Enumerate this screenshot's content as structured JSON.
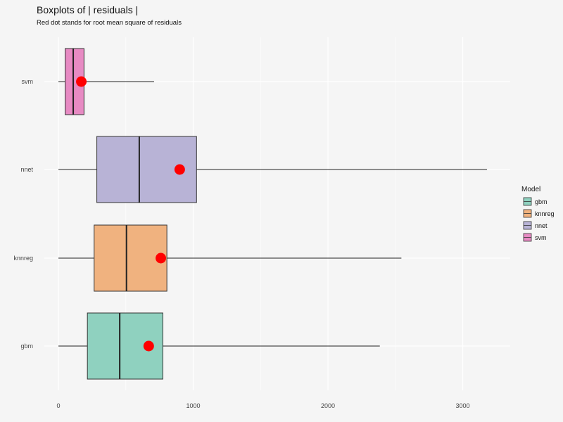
{
  "chart_data": {
    "type": "boxplot",
    "orientation": "horizontal",
    "title": "Boxplots of | residuals |",
    "subtitle": "Red dot stands for root mean square of residuals",
    "xlabel": "",
    "ylabel": "",
    "xlim": [
      -100,
      3350
    ],
    "x_ticks": [
      0,
      1000,
      2000,
      3000
    ],
    "x_tick_labels": [
      "0",
      "1000",
      "2000",
      "3000"
    ],
    "grid": true,
    "legend": {
      "title": "Model",
      "placement": "right",
      "entries": [
        "gbm",
        "knnreg",
        "nnet",
        "svm"
      ]
    },
    "categories": [
      "svm",
      "nnet",
      "knnreg",
      "gbm"
    ],
    "series": [
      {
        "name": "svm",
        "min": 0,
        "q1": 50,
        "median": 110,
        "q3": 190,
        "max": 710,
        "rmse": 170,
        "color": "#e78ac3"
      },
      {
        "name": "nnet",
        "min": 0,
        "q1": 285,
        "median": 600,
        "q3": 1025,
        "max": 3180,
        "rmse": 900,
        "color": "#b8b3d6"
      },
      {
        "name": "knnreg",
        "min": 0,
        "q1": 265,
        "median": 505,
        "q3": 805,
        "max": 2545,
        "rmse": 760,
        "color": "#f0b27f"
      },
      {
        "name": "gbm",
        "min": 0,
        "q1": 215,
        "median": 455,
        "q3": 775,
        "max": 2385,
        "rmse": 670,
        "color": "#8fd1bf"
      }
    ],
    "rmse_dot_color": "#ff0000"
  }
}
